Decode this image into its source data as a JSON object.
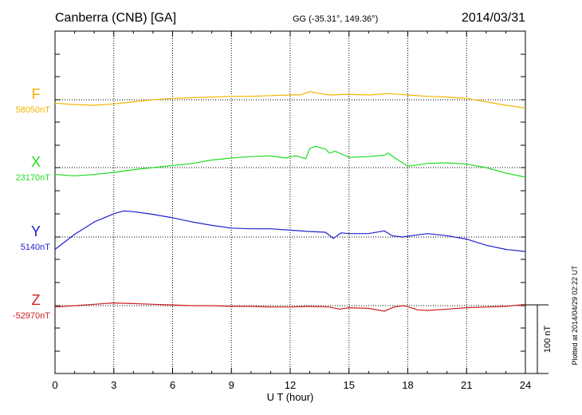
{
  "header": {
    "station": "Canberra (CNB)  [GA]",
    "coords": "GG (-35.31°, 149.36°)",
    "date": "2014/03/31"
  },
  "footer": {
    "xlabel": "U T (hour)",
    "plotted_note": "Plotted at 2014/04/29 02:22 UT",
    "scale_label": "100 nT"
  },
  "chart_data": {
    "type": "line",
    "title": "Canberra (CNB)  [GA]",
    "xlabel": "U T (hour)",
    "xlim": [
      0,
      24
    ],
    "xticks": [
      0,
      3,
      6,
      9,
      12,
      15,
      18,
      21,
      24
    ],
    "grid": true,
    "scale_bar_nT": 100,
    "series": [
      {
        "name": "F",
        "baseline_label": "58050nT",
        "baseline_nT": 58050,
        "color": "#f2b400",
        "x": [
          0,
          1,
          2,
          3,
          4,
          5,
          6,
          7,
          8,
          9,
          10,
          11,
          12,
          12.5,
          13,
          13.5,
          14,
          15,
          16,
          17,
          18,
          19,
          20,
          21,
          22,
          23,
          24
        ],
        "y": [
          -5,
          -7,
          -8,
          -6,
          -3,
          0,
          2,
          3,
          4,
          5,
          5,
          6,
          7,
          7,
          12,
          9,
          7,
          8,
          7,
          9,
          7,
          5,
          4,
          2,
          -3,
          -8,
          -12
        ]
      },
      {
        "name": "X",
        "baseline_label": "23170nT",
        "baseline_nT": 23170,
        "color": "#22dd22",
        "x": [
          0,
          1,
          2,
          3,
          4,
          5,
          6,
          7,
          8,
          9,
          10,
          11,
          11.8,
          12,
          12.3,
          12.8,
          13,
          13.3,
          13.8,
          14,
          14.3,
          15,
          16,
          16.8,
          17,
          17.3,
          18,
          19,
          20,
          21,
          22,
          23,
          24
        ],
        "y": [
          -10,
          -12,
          -10,
          -7,
          -3,
          0,
          3,
          6,
          11,
          14,
          16,
          17,
          14,
          16,
          17,
          13,
          28,
          31,
          27,
          21,
          24,
          15,
          16,
          18,
          21,
          15,
          2,
          6,
          7,
          5,
          0,
          -8,
          -14
        ]
      },
      {
        "name": "Y",
        "baseline_label": "5140nT",
        "baseline_nT": 5140,
        "color": "#2020cc",
        "x": [
          0,
          1,
          2,
          3,
          3.5,
          4,
          4.5,
          5,
          6,
          7,
          8,
          9,
          10,
          11,
          12,
          13,
          13.8,
          14.2,
          14.6,
          15,
          16,
          16.8,
          17.2,
          17.7,
          18.2,
          19,
          20,
          21,
          22,
          23,
          24
        ],
        "y": [
          -18,
          4,
          22,
          34,
          38,
          37,
          35,
          33,
          28,
          22,
          17,
          13,
          12,
          12,
          10,
          8,
          7,
          -2,
          6,
          5,
          5,
          9,
          2,
          0,
          2,
          5,
          2,
          -3,
          -12,
          -18,
          -21
        ]
      },
      {
        "name": "Z",
        "baseline_label": "-52970nT",
        "baseline_nT": -52970,
        "color": "#cc2020",
        "x": [
          0,
          1,
          2,
          3,
          4,
          5,
          6,
          7,
          8,
          9,
          10,
          11,
          12,
          13,
          14,
          14.5,
          15,
          16,
          16.8,
          17.3,
          17.8,
          18.5,
          19,
          20,
          21,
          22,
          23,
          24
        ],
        "y": [
          -2,
          0,
          2,
          4,
          3,
          2,
          1,
          0,
          0,
          -1,
          -1,
          -2,
          -2,
          -1,
          -2,
          -5,
          -3,
          -4,
          -8,
          -2,
          0,
          -6,
          -7,
          -5,
          -3,
          -2,
          -1,
          2
        ]
      }
    ]
  }
}
